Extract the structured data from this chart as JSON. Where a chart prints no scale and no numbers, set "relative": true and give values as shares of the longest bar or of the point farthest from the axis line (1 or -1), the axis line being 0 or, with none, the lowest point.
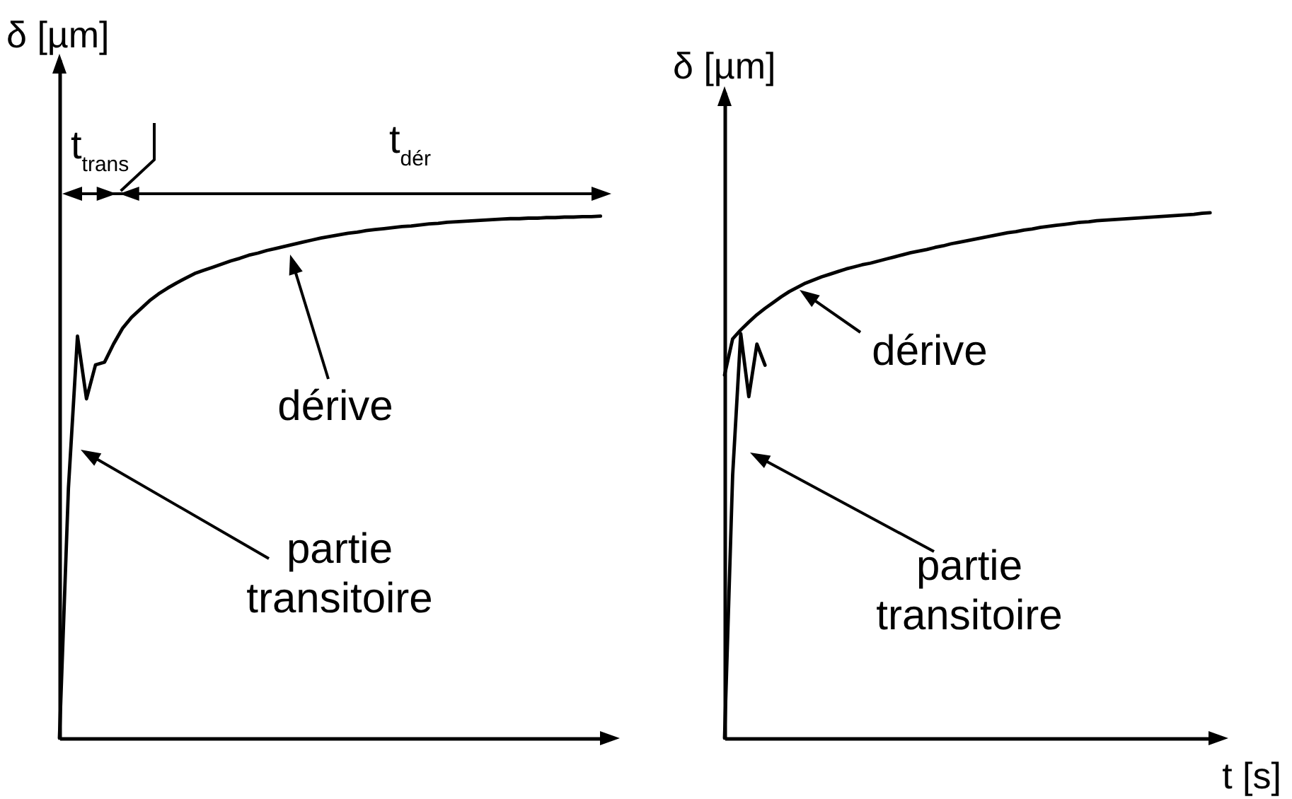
{
  "chart_data": [
    {
      "type": "line",
      "relative": true,
      "ylabel": "δ [µm]",
      "categories": [
        null,
        null,
        null,
        null,
        null,
        null,
        null,
        null,
        null,
        null,
        null,
        null,
        null,
        null,
        null,
        null,
        null,
        null,
        null,
        null,
        null,
        null,
        null,
        null,
        null,
        null,
        null,
        null,
        null,
        null,
        null,
        null,
        null,
        null,
        null,
        null,
        null,
        null,
        null,
        null,
        null,
        null,
        null,
        null,
        null,
        null,
        null,
        null,
        null,
        null,
        null,
        null,
        null,
        null,
        null,
        null,
        null,
        null,
        null,
        null,
        null
      ],
      "series": [
        {
          "color": "#000000",
          "values": [
            0,
            0.48,
            0.77,
            0.65,
            0.715,
            0.72,
            0.755,
            0.785,
            0.806,
            0.822,
            0.838,
            0.851,
            0.862,
            0.872,
            0.881,
            0.89,
            0.896,
            0.902,
            0.908,
            0.914,
            0.919,
            0.925,
            0.929,
            0.934,
            0.938,
            0.942,
            0.946,
            0.95,
            0.954,
            0.958,
            0.961,
            0.964,
            0.967,
            0.969,
            0.972,
            0.974,
            0.976,
            0.978,
            0.98,
            0.981,
            0.983,
            0.985,
            0.986,
            0.988,
            0.989,
            0.99,
            0.991,
            0.992,
            0.993,
            0.994,
            0.995,
            0.995,
            0.996,
            0.996,
            0.997,
            0.997,
            0.998,
            0.998,
            0.999,
            0.999,
            1
          ]
        }
      ],
      "annotations": [
        "t$_{trans}$",
        "t$_{dér}$",
        "dérive",
        "partie\ntransitoire"
      ]
    },
    {
      "type": "line",
      "relative": true,
      "ylabel": "δ [µm]",
      "xlabel": "t [s]",
      "categories": [
        null,
        null,
        null,
        null,
        null,
        null,
        null,
        null,
        null,
        null,
        null,
        null,
        null,
        null,
        null,
        null,
        null,
        null,
        null,
        null,
        null,
        null,
        null,
        null,
        null,
        null,
        null,
        null,
        null,
        null,
        null,
        null,
        null,
        null,
        null,
        null,
        null,
        null,
        null,
        null,
        null,
        null,
        null,
        null,
        null,
        null,
        null,
        null,
        null,
        null,
        null,
        null,
        null,
        null,
        null,
        null,
        null,
        null,
        null,
        null,
        null
      ],
      "series": [
        {
          "color": "#000000",
          "values": [
            0,
            0.5,
            0.77,
            0.65,
            0.75,
            0.71,
            null,
            null,
            null,
            null,
            null,
            null,
            null,
            null,
            null,
            null,
            null,
            null,
            null,
            null,
            null,
            null,
            null,
            null,
            null,
            null,
            null,
            null,
            null,
            null,
            null,
            null,
            null,
            null,
            null,
            null,
            null,
            null,
            null,
            null,
            null,
            null,
            null,
            null,
            null,
            null,
            null,
            null,
            null,
            null,
            null,
            null,
            null,
            null,
            null,
            null,
            null,
            null,
            null,
            null,
            null
          ]
        },
        {
          "color": "#000000",
          "values": [
            0.691,
            0.76,
            0.777,
            0.792,
            0.806,
            0.818,
            0.829,
            0.84,
            0.85,
            0.858,
            0.866,
            0.872,
            0.878,
            0.883,
            0.888,
            0.893,
            0.897,
            0.901,
            0.904,
            0.908,
            0.912,
            0.916,
            0.92,
            0.924,
            0.927,
            0.93,
            0.934,
            0.937,
            0.941,
            0.944,
            0.947,
            0.95,
            0.953,
            0.956,
            0.959,
            0.962,
            0.964,
            0.967,
            0.969,
            0.972,
            0.974,
            0.976,
            0.978,
            0.98,
            0.982,
            0.983,
            0.985,
            0.986,
            0.987,
            0.988,
            0.989,
            0.99,
            0.991,
            0.992,
            0.993,
            0.994,
            0.995,
            0.996,
            0.997,
            0.999,
            1
          ]
        }
      ],
      "annotations": [
        "dérive",
        "partie\ntransitoire"
      ]
    }
  ]
}
